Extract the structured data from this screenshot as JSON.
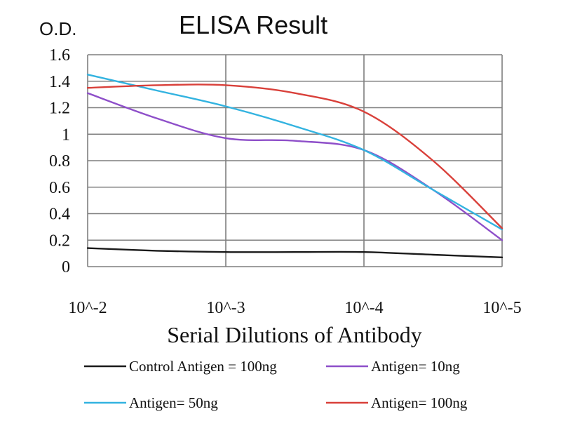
{
  "chart_data": {
    "type": "line",
    "title": "ELISA Result",
    "ylabel": "O.D.",
    "xlabel": "Serial Dilutions of Antibody",
    "categories": [
      "10^-2",
      "10^-3",
      "10^-4",
      "10^-5"
    ],
    "x": [
      1,
      1.5,
      2,
      2.5,
      3,
      3.5,
      4
    ],
    "ylim": [
      0,
      1.6
    ],
    "yticks": [
      "0",
      "0.2",
      "0.4",
      "0.6",
      "0.8",
      "1",
      "1.2",
      "1.4",
      "1.6"
    ],
    "grid": true,
    "legend": "bottom",
    "series": [
      {
        "name": "Control Antigen = 100ng",
        "color": "#1a1a1a",
        "values": [
          0.14,
          0.12,
          0.11,
          0.11,
          0.11,
          0.09,
          0.07
        ]
      },
      {
        "name": "Antigen= 10ng",
        "color": "#8e4fc9",
        "values": [
          1.31,
          1.12,
          0.97,
          0.95,
          0.88,
          0.58,
          0.2
        ]
      },
      {
        "name": "Antigen= 50ng",
        "color": "#33b3e0",
        "values": [
          1.45,
          1.33,
          1.21,
          1.06,
          0.88,
          0.58,
          0.28
        ]
      },
      {
        "name": "Antigen= 100ng",
        "color": "#d9403a",
        "values": [
          1.35,
          1.37,
          1.37,
          1.31,
          1.17,
          0.8,
          0.29
        ]
      }
    ]
  }
}
